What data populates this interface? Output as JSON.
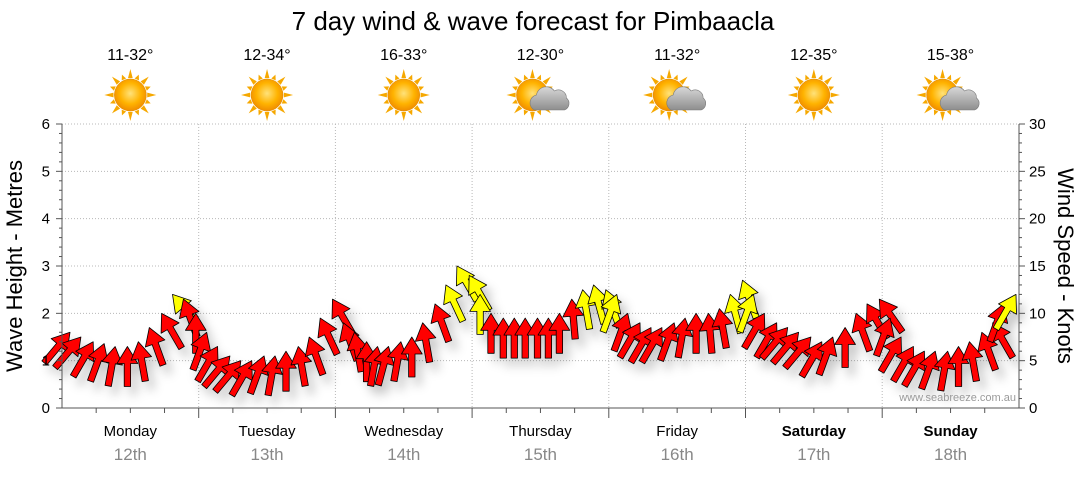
{
  "chart_data": {
    "type": "line",
    "title": "7 day wind & wave forecast for Pimbaacla",
    "ylabel_left": "Wave Height - Metres",
    "ylabel_right": "Wind Speed - Knots",
    "yticks_left": [
      "0",
      "1",
      "2",
      "3",
      "4",
      "5",
      "6"
    ],
    "yticks_right": [
      "0",
      "5",
      "10",
      "15",
      "20",
      "25",
      "30"
    ],
    "ylim_left": [
      0,
      6
    ],
    "ylim_right": [
      0,
      30
    ],
    "watermark": "www.seabreeze.com.au",
    "days": [
      {
        "name": "Monday",
        "date": "12th",
        "temp": "11-32°",
        "weather": "sunny",
        "bold": false
      },
      {
        "name": "Tuesday",
        "date": "13th",
        "temp": "12-34°",
        "weather": "sunny",
        "bold": false
      },
      {
        "name": "Wednesday",
        "date": "14th",
        "temp": "16-33°",
        "weather": "sunny",
        "bold": false
      },
      {
        "name": "Thursday",
        "date": "15th",
        "temp": "12-30°",
        "weather": "partly-cloudy",
        "bold": false
      },
      {
        "name": "Friday",
        "date": "16th",
        "temp": "11-32°",
        "weather": "partly-cloudy",
        "bold": false
      },
      {
        "name": "Saturday",
        "date": "17th",
        "temp": "12-35°",
        "weather": "sunny",
        "bold": true
      },
      {
        "name": "Sunday",
        "date": "18th",
        "temp": "15-38°",
        "weather": "partly-cloudy",
        "bold": true
      }
    ],
    "wind_series": {
      "name": "Wind",
      "units": "knots",
      "x_day": [
        0,
        0.08,
        0.17,
        0.25,
        0.33,
        0.42,
        0.5,
        0.58,
        0.67,
        0.75,
        0.83,
        0.92,
        1,
        1.08,
        1.17,
        1.25,
        1.33,
        1.42,
        1.5,
        1.58,
        1.67,
        1.75,
        1.83,
        1.92,
        2,
        2.08,
        2.17,
        2.25,
        2.33,
        2.42,
        2.5,
        2.58,
        2.67,
        2.75,
        2.83,
        2.92,
        3,
        3.08,
        3.17,
        3.25,
        3.33,
        3.42,
        3.5,
        3.58,
        3.67,
        3.75,
        3.83,
        3.92,
        4,
        4.08,
        4.17,
        4.25,
        4.33,
        4.42,
        4.5,
        4.58,
        4.67,
        4.75,
        4.83,
        4.92,
        5,
        5.08,
        5.17,
        5.25,
        5.33,
        5.42,
        5.5,
        5.58,
        5.67,
        5.75,
        5.83,
        5.92,
        6,
        6.08,
        6.17,
        6.25,
        6.33,
        6.42,
        6.5,
        6.58,
        6.67,
        6.75,
        6.83,
        6.92
      ],
      "speed": [
        8,
        7.5,
        7,
        6.8,
        6.5,
        6.5,
        7,
        8.5,
        10,
        12,
        11.5,
        10,
        8,
        6.5,
        5.5,
        5,
        5,
        5.5,
        5.5,
        6,
        6.5,
        7.5,
        9.5,
        11.5,
        9,
        8,
        7,
        6.5,
        6.5,
        7,
        7.5,
        9,
        11,
        13,
        15,
        14,
        12,
        10,
        9.5,
        9.5,
        9.5,
        9.5,
        9.5,
        10,
        11.5,
        12.5,
        13,
        12.5,
        12,
        10,
        9,
        8.5,
        8.5,
        9,
        9.5,
        10,
        10,
        10.5,
        12,
        13.5,
        12,
        10,
        9,
        8.5,
        8,
        7.5,
        7,
        7.5,
        8.5,
        10,
        11,
        11.5,
        9.5,
        7.5,
        6.5,
        6,
        6,
        6,
        6.5,
        7,
        8,
        9,
        11,
        12
      ],
      "direction_deg": [
        140,
        140,
        150,
        160,
        170,
        180,
        190,
        200,
        210,
        220,
        200,
        180,
        160,
        150,
        140,
        140,
        150,
        160,
        170,
        180,
        190,
        200,
        205,
        210,
        200,
        190,
        180,
        170,
        165,
        170,
        180,
        190,
        200,
        205,
        210,
        210,
        180,
        180,
        180,
        180,
        180,
        180,
        180,
        180,
        185,
        190,
        195,
        200,
        160,
        160,
        150,
        150,
        150,
        160,
        170,
        180,
        185,
        190,
        195,
        200,
        160,
        150,
        150,
        140,
        140,
        140,
        150,
        160,
        180,
        200,
        210,
        215,
        160,
        150,
        150,
        150,
        160,
        170,
        180,
        190,
        200,
        210,
        160,
        150
      ],
      "colors": {
        "low": "#FF0000",
        "high": "#FFFF00",
        "threshold_knots": 12
      }
    }
  }
}
